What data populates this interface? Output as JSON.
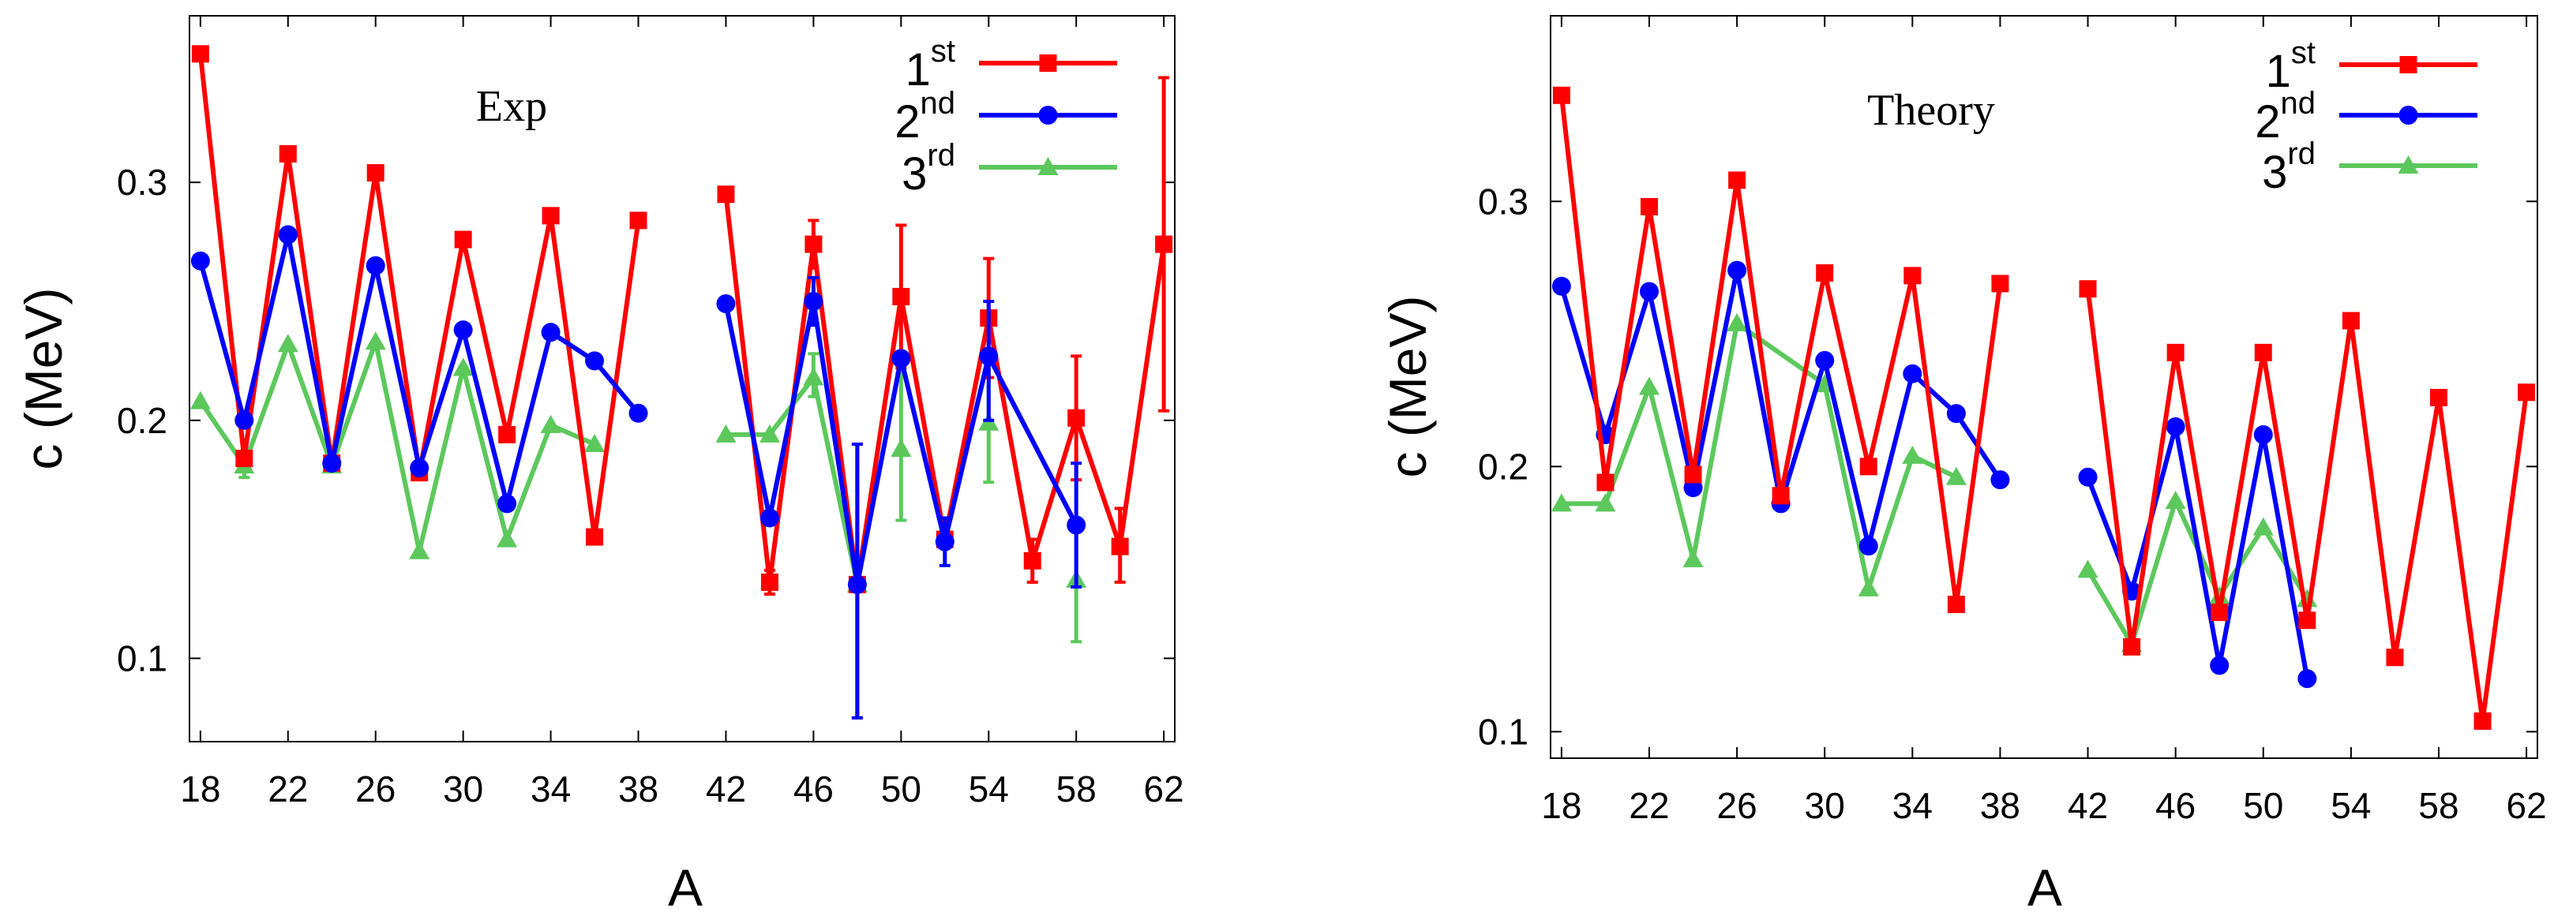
{
  "chart_data": [
    {
      "type": "line",
      "title": "Exp",
      "xlabel": "A",
      "ylabel": "c (MeV)",
      "xlim": [
        17.5,
        62.5
      ],
      "ylim": [
        0.065,
        0.37
      ],
      "xticks": [
        "18",
        "22",
        "26",
        "30",
        "34",
        "38",
        "42",
        "46",
        "50",
        "54",
        "58",
        "62"
      ],
      "yticks": [
        "0.1",
        "0.2",
        "0.3"
      ],
      "legend_position": "top-right",
      "series": [
        {
          "name": "1st",
          "name_base": "1",
          "name_sup": "st",
          "color": "#ff0000",
          "marker": "square",
          "segments": [
            [
              [
                18,
                0.354
              ],
              [
                20,
                0.184
              ],
              [
                22,
                0.312
              ],
              [
                24,
                0.182
              ],
              [
                26,
                0.304
              ],
              [
                28,
                0.178
              ],
              [
                30,
                0.276
              ],
              [
                32,
                0.194
              ],
              [
                34,
                0.286
              ],
              [
                36,
                0.151
              ],
              [
                38,
                0.284
              ]
            ],
            [
              [
                42,
                0.295
              ],
              [
                44,
                0.132
              ],
              [
                46,
                0.274
              ],
              [
                48,
                0.131
              ],
              [
                50,
                0.252
              ],
              [
                52,
                0.15
              ],
              [
                54,
                0.243
              ],
              [
                56,
                0.141
              ],
              [
                58,
                0.201
              ],
              [
                60,
                0.147
              ],
              [
                62,
                0.274
              ]
            ]
          ],
          "errorbars": [
            [
              44,
              0.127,
              0.137
            ],
            [
              46,
              0.264,
              0.284
            ],
            [
              48,
              0.075,
              0.19
            ],
            [
              50,
              0.222,
              0.282
            ],
            [
              54,
              0.218,
              0.268
            ],
            [
              56,
              0.132,
              0.15
            ],
            [
              58,
              0.175,
              0.227
            ],
            [
              60,
              0.132,
              0.163
            ],
            [
              62,
              0.204,
              0.344
            ]
          ]
        },
        {
          "name": "2nd",
          "name_base": "2",
          "name_sup": "nd",
          "color": "#0000ff",
          "marker": "circle",
          "segments": [
            [
              [
                18,
                0.267
              ],
              [
                20,
                0.2
              ],
              [
                22,
                0.278
              ],
              [
                24,
                0.182
              ],
              [
                26,
                0.265
              ],
              [
                28,
                0.18
              ],
              [
                30,
                0.238
              ],
              [
                32,
                0.165
              ],
              [
                34,
                0.237
              ],
              [
                36,
                0.225
              ],
              [
                38,
                0.203
              ]
            ],
            [
              [
                42,
                0.249
              ],
              [
                44,
                0.159
              ],
              [
                46,
                0.25
              ],
              [
                48,
                0.131
              ],
              [
                50,
                0.226
              ],
              [
                52,
                0.149
              ],
              [
                54,
                0.227
              ],
              [
                58,
                0.156
              ]
            ]
          ],
          "errorbars": [
            [
              46,
              0.24,
              0.26
            ],
            [
              48,
              0.075,
              0.19
            ],
            [
              52,
              0.139,
              0.159
            ],
            [
              54,
              0.2,
              0.25
            ],
            [
              58,
              0.13,
              0.182
            ]
          ]
        },
        {
          "name": "3rd",
          "name_base": "3",
          "name_sup": "rd",
          "color": "#5cc85c",
          "marker": "triangle",
          "segments": [
            [
              [
                18,
                0.208
              ],
              [
                20,
                0.181
              ],
              [
                22,
                0.232
              ],
              [
                24,
                0.181
              ],
              [
                26,
                0.233
              ],
              [
                28,
                0.145
              ],
              [
                30,
                0.222
              ],
              [
                32,
                0.15
              ],
              [
                34,
                0.198
              ],
              [
                36,
                0.19
              ]
            ],
            [
              [
                42,
                0.194
              ],
              [
                44,
                0.194
              ],
              [
                46,
                0.218
              ],
              [
                48,
                0.131
              ]
            ],
            [
              [
                50,
                0.188
              ]
            ],
            [
              [
                54,
                0.199
              ]
            ],
            [
              [
                58,
                0.133
              ]
            ]
          ],
          "errorbars": [
            [
              20,
              0.176,
              0.186
            ],
            [
              46,
              0.21,
              0.228
            ],
            [
              50,
              0.158,
              0.22
            ],
            [
              54,
              0.174,
              0.224
            ],
            [
              58,
              0.107,
              0.157
            ]
          ]
        }
      ]
    },
    {
      "type": "line",
      "title": "Theory",
      "xlabel": "A",
      "ylabel": "c (MeV)",
      "xlim": [
        17.5,
        62.5
      ],
      "ylim": [
        0.09,
        0.37
      ],
      "xticks": [
        "18",
        "22",
        "26",
        "30",
        "34",
        "38",
        "42",
        "46",
        "50",
        "54",
        "58",
        "62"
      ],
      "yticks": [
        "0.1",
        "0.2",
        "0.3"
      ],
      "legend_position": "top-right",
      "series": [
        {
          "name": "1st",
          "name_base": "1",
          "name_sup": "st",
          "color": "#ff0000",
          "marker": "square",
          "segments": [
            [
              [
                18,
                0.34
              ],
              [
                20,
                0.194
              ],
              [
                22,
                0.298
              ],
              [
                24,
                0.197
              ],
              [
                26,
                0.308
              ],
              [
                28,
                0.189
              ],
              [
                30,
                0.273
              ],
              [
                32,
                0.2
              ],
              [
                34,
                0.272
              ],
              [
                36,
                0.148
              ],
              [
                38,
                0.269
              ]
            ],
            [
              [
                42,
                0.267
              ],
              [
                44,
                0.132
              ],
              [
                46,
                0.243
              ],
              [
                48,
                0.145
              ],
              [
                50,
                0.243
              ],
              [
                52,
                0.142
              ],
              [
                54,
                0.255
              ],
              [
                56,
                0.128
              ],
              [
                58,
                0.226
              ],
              [
                60,
                0.104
              ],
              [
                62,
                0.228
              ]
            ]
          ],
          "errorbars": []
        },
        {
          "name": "2nd",
          "name_base": "2",
          "name_sup": "nd",
          "color": "#0000ff",
          "marker": "circle",
          "segments": [
            [
              [
                18,
                0.268
              ],
              [
                20,
                0.212
              ],
              [
                22,
                0.266
              ],
              [
                24,
                0.192
              ],
              [
                26,
                0.274
              ],
              [
                28,
                0.186
              ],
              [
                30,
                0.24
              ],
              [
                32,
                0.17
              ],
              [
                34,
                0.235
              ],
              [
                36,
                0.22
              ],
              [
                38,
                0.195
              ]
            ],
            [
              [
                42,
                0.196
              ],
              [
                44,
                0.153
              ],
              [
                46,
                0.215
              ],
              [
                48,
                0.125
              ],
              [
                50,
                0.212
              ],
              [
                52,
                0.12
              ]
            ]
          ],
          "errorbars": []
        },
        {
          "name": "3rd",
          "name_base": "3",
          "name_sup": "rd",
          "color": "#5cc85c",
          "marker": "triangle",
          "segments": [
            [
              [
                18,
                0.186
              ],
              [
                20,
                0.186
              ],
              [
                22,
                0.23
              ],
              [
                24,
                0.165
              ],
              [
                26,
                0.254
              ],
              [
                30,
                0.231
              ],
              [
                32,
                0.154
              ],
              [
                34,
                0.204
              ],
              [
                36,
                0.196
              ]
            ],
            [
              [
                42,
                0.161
              ],
              [
                44,
                0.133
              ],
              [
                46,
                0.187
              ],
              [
                48,
                0.151
              ],
              [
                50,
                0.177
              ],
              [
                52,
                0.15
              ]
            ]
          ],
          "errorbars": []
        }
      ]
    }
  ]
}
